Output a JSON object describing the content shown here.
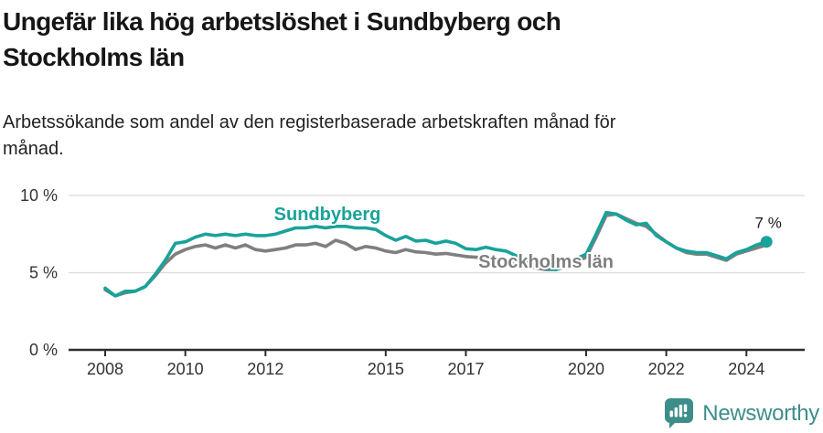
{
  "header": {
    "title": "Ungefär lika hög arbetslöshet i Sundbyberg och Stockholms län",
    "title_lines": [
      "Ungefär lika hög arbetslöshet i Sundbyberg och",
      "Stockholms län"
    ],
    "subtitle": "Arbetssökande som andel av den registerbaserade arbetskraften månad för månad.",
    "subtitle_lines": [
      "Arbetssökande som andel av den registerbaserade arbetskraften månad för",
      "månad."
    ]
  },
  "chart_data": {
    "type": "line",
    "title": "Ungefär lika hög arbetslöshet i Sundbyberg och Stockholms län",
    "subtitle": "Arbetssökande som andel av den registerbaserade arbetskraften månad för månad.",
    "xlabel": "",
    "ylabel": "",
    "ylim": [
      0,
      10
    ],
    "xlim": [
      2007.5,
      2025.2
    ],
    "grid": "horizontal",
    "legend": "inline-labels",
    "yticks": [
      {
        "value": 0,
        "label": "0 %"
      },
      {
        "value": 5,
        "label": "5 %"
      },
      {
        "value": 10,
        "label": "10 %"
      }
    ],
    "xticks": [
      {
        "value": 2008,
        "label": "2008"
      },
      {
        "value": 2010,
        "label": "2010"
      },
      {
        "value": 2012,
        "label": "2012"
      },
      {
        "value": 2015,
        "label": "2015"
      },
      {
        "value": 2017,
        "label": "2017"
      },
      {
        "value": 2020,
        "label": "2020"
      },
      {
        "value": 2022,
        "label": "2022"
      },
      {
        "value": 2024,
        "label": "2024"
      }
    ],
    "x": [
      2008,
      2008.25,
      2008.5,
      2008.75,
      2009,
      2009.25,
      2009.5,
      2009.75,
      2010,
      2010.25,
      2010.5,
      2010.75,
      2011,
      2011.25,
      2011.5,
      2011.75,
      2012,
      2012.25,
      2012.5,
      2012.75,
      2013,
      2013.25,
      2013.5,
      2013.75,
      2014,
      2014.25,
      2014.5,
      2014.75,
      2015,
      2015.25,
      2015.5,
      2015.75,
      2016,
      2016.25,
      2016.5,
      2016.75,
      2017,
      2017.25,
      2017.5,
      2017.75,
      2018,
      2018.25,
      2018.5,
      2018.75,
      2019,
      2019.25,
      2019.5,
      2019.75,
      2020,
      2020.25,
      2020.5,
      2020.75,
      2021,
      2021.25,
      2021.5,
      2021.75,
      2022,
      2022.25,
      2022.5,
      2022.75,
      2023,
      2023.25,
      2023.5,
      2023.75,
      2024,
      2024.25,
      2024.5
    ],
    "series": [
      {
        "name": "Sundbyberg",
        "color": "#19a29a",
        "values": [
          4.0,
          3.5,
          3.8,
          3.8,
          4.1,
          4.9,
          5.8,
          6.9,
          7.0,
          7.3,
          7.5,
          7.4,
          7.5,
          7.4,
          7.5,
          7.4,
          7.4,
          7.5,
          7.7,
          7.9,
          7.9,
          8.0,
          7.9,
          8.0,
          8.0,
          7.9,
          7.9,
          7.8,
          7.4,
          7.1,
          7.35,
          7.05,
          7.1,
          6.9,
          7.05,
          6.9,
          6.55,
          6.5,
          6.65,
          6.5,
          6.4,
          6.1,
          5.8,
          5.6,
          5.3,
          5.2,
          5.5,
          5.9,
          6.2,
          7.5,
          8.9,
          8.8,
          8.4,
          8.1,
          8.2,
          7.4,
          7.0,
          6.6,
          6.4,
          6.3,
          6.3,
          6.1,
          5.9,
          6.3,
          6.5,
          6.8,
          7.0
        ]
      },
      {
        "name": "Stockholms län",
        "color": "#7f7f7f",
        "values": [
          3.9,
          3.5,
          3.7,
          3.8,
          4.1,
          4.8,
          5.6,
          6.2,
          6.5,
          6.7,
          6.8,
          6.6,
          6.8,
          6.6,
          6.8,
          6.5,
          6.4,
          6.5,
          6.6,
          6.8,
          6.8,
          6.9,
          6.7,
          7.1,
          6.9,
          6.5,
          6.7,
          6.6,
          6.4,
          6.3,
          6.5,
          6.35,
          6.3,
          6.2,
          6.25,
          6.15,
          6.05,
          6.0,
          5.95,
          5.9,
          5.8,
          5.6,
          5.4,
          5.3,
          5.2,
          5.2,
          5.4,
          5.7,
          6.0,
          7.3,
          8.7,
          8.8,
          8.5,
          8.2,
          8.0,
          7.5,
          7.0,
          6.6,
          6.3,
          6.2,
          6.2,
          6.0,
          5.8,
          6.2,
          6.4,
          6.6,
          6.8
        ]
      }
    ],
    "end_annotation": {
      "label": "7 %",
      "series": "Sundbyberg",
      "value": 7.0
    },
    "colors": {
      "grid": "#dcdcdc",
      "axis": "#2e2e2e",
      "tick_text": "#333333",
      "annotation": "#1a1a1a"
    }
  },
  "footer": {
    "brand": "Newsworthy",
    "brand_color": "#3d8e8a"
  }
}
